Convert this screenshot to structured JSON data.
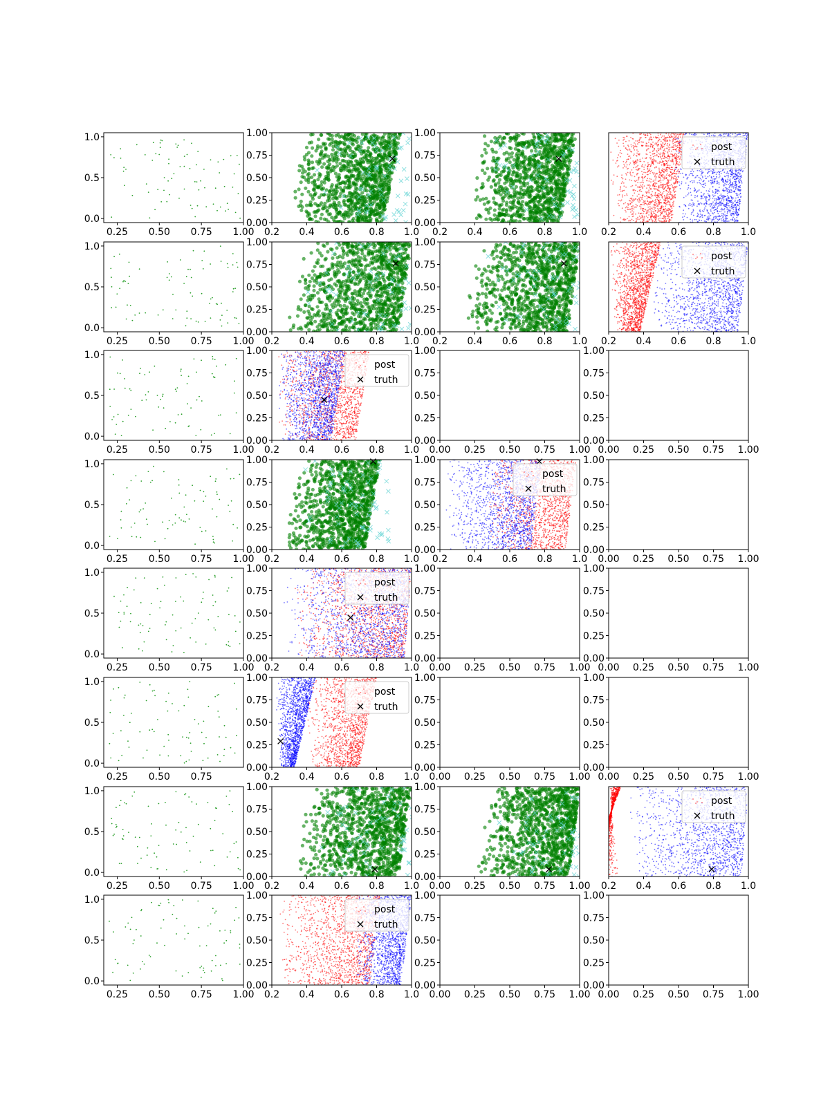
{
  "figure": {
    "rows": 8,
    "cols": 4
  },
  "legend": {
    "post_label": "post",
    "truth_label": "truth"
  },
  "colors": {
    "observed_points": "#2ca02c",
    "samples_green": "#008000",
    "samples_cyan": "#5fd3d3",
    "post_red": "#ff0000",
    "post_blue": "#0000ff",
    "truth_marker": "#000000"
  },
  "chart_data": [
    {
      "row": 0,
      "col": 0,
      "type": "scatter",
      "kind": "observed",
      "xlim": [
        0.17,
        1.0
      ],
      "ylim": [
        -0.05,
        1.05
      ],
      "xticks": [
        "0.25",
        "0.50",
        "0.75",
        "1.00"
      ],
      "yticks": [
        "0.0",
        "0.5",
        "1.0"
      ],
      "n_points": 80
    },
    {
      "row": 0,
      "col": 1,
      "type": "scatter",
      "kind": "green",
      "xlim": [
        0.2,
        1.0
      ],
      "ylim": [
        0,
        1.0
      ],
      "xticks": [
        "0.2",
        "0.4",
        "0.6",
        "0.8",
        "1.0"
      ],
      "yticks": [
        "0.00",
        "0.25",
        "0.50",
        "0.75",
        "1.00"
      ],
      "truth": [
        0.89,
        0.71
      ],
      "wedge": {
        "x0": 0.3,
        "x1": 0.94,
        "bias": 0.7
      }
    },
    {
      "row": 0,
      "col": 2,
      "type": "scatter",
      "kind": "green",
      "xlim": [
        0.2,
        1.0
      ],
      "ylim": [
        0,
        1.0
      ],
      "xticks": [
        "0.2",
        "0.4",
        "0.6",
        "0.8",
        "1.0"
      ],
      "yticks": [
        "0.00",
        "0.25",
        "0.50",
        "0.75",
        "1.00"
      ],
      "truth": [
        0.88,
        0.71
      ],
      "wedge": {
        "x0": 0.35,
        "x1": 0.98,
        "bias": 0.6
      }
    },
    {
      "row": 0,
      "col": 3,
      "type": "scatter",
      "kind": "post",
      "xlim": [
        0.2,
        1.0
      ],
      "ylim": [
        0,
        1.0
      ],
      "xticks": [
        "0.2",
        "0.4",
        "0.6",
        "0.8",
        "1.0"
      ],
      "yticks": [],
      "legend": true,
      "red": {
        "x0": 0.2,
        "x1": 0.64,
        "tilt": 0.08
      },
      "blue": {
        "x0": 0.56,
        "x1": 1.0,
        "tilt": 0.06
      }
    },
    {
      "row": 1,
      "col": 0,
      "type": "scatter",
      "kind": "observed",
      "xlim": [
        0.17,
        1.0
      ],
      "ylim": [
        -0.05,
        1.05
      ],
      "xticks": [
        "0.25",
        "0.50",
        "0.75",
        "1.00"
      ],
      "yticks": [
        "0.0",
        "0.5",
        "1.0"
      ],
      "n_points": 80
    },
    {
      "row": 1,
      "col": 1,
      "type": "scatter",
      "kind": "green",
      "xlim": [
        0.2,
        1.0
      ],
      "ylim": [
        0,
        1.0
      ],
      "xticks": [
        "0.2",
        "0.4",
        "0.6",
        "0.8",
        "1.0"
      ],
      "yticks": [
        "0.00",
        "0.25",
        "0.50",
        "0.75",
        "1.00"
      ],
      "truth": [
        0.91,
        0.76
      ],
      "wedge": {
        "x0": 0.25,
        "x1": 1.0,
        "bias": 0.5
      }
    },
    {
      "row": 1,
      "col": 2,
      "type": "scatter",
      "kind": "green",
      "xlim": [
        0.2,
        1.0
      ],
      "ylim": [
        0,
        1.0
      ],
      "xticks": [
        "0.2",
        "0.4",
        "0.6",
        "0.8",
        "1.0"
      ],
      "yticks": [
        "0.00",
        "0.25",
        "0.50",
        "0.75",
        "1.00"
      ],
      "truth": [
        0.91,
        0.76
      ],
      "wedge": {
        "x0": 0.3,
        "x1": 1.0,
        "bias": 0.45
      }
    },
    {
      "row": 1,
      "col": 3,
      "type": "scatter",
      "kind": "post",
      "xlim": [
        0.2,
        1.0
      ],
      "ylim": [
        0,
        1.0
      ],
      "xticks": [
        "0.2",
        "0.4",
        "0.6",
        "0.8",
        "1.0"
      ],
      "yticks": [],
      "legend": true,
      "red": {
        "x0": 0.2,
        "x1": 0.5,
        "tilt": 0.12
      },
      "blue": {
        "x0": 0.42,
        "x1": 1.0,
        "tilt": 0.06
      }
    },
    {
      "row": 2,
      "col": 0,
      "type": "scatter",
      "kind": "observed",
      "xlim": [
        0.17,
        1.0
      ],
      "ylim": [
        -0.05,
        1.05
      ],
      "xticks": [
        "0.25",
        "0.50",
        "0.75",
        "1.00"
      ],
      "yticks": [
        "0.0",
        "0.5",
        "1.0"
      ],
      "n_points": 80
    },
    {
      "row": 2,
      "col": 1,
      "type": "scatter",
      "kind": "post",
      "xlim": [
        0.2,
        1.0
      ],
      "ylim": [
        0,
        1.0
      ],
      "xticks": [
        "0.2",
        "0.4",
        "0.6",
        "0.8",
        "1.0"
      ],
      "yticks": [
        "0.00",
        "0.25",
        "0.50",
        "0.75",
        "1.00"
      ],
      "legend": true,
      "truth": [
        0.5,
        0.45
      ],
      "red": {
        "x0": 0.22,
        "x1": 0.76,
        "tilt": 0.08
      },
      "blue": {
        "x0": 0.22,
        "x1": 0.62,
        "tilt": 0.08
      }
    },
    {
      "row": 2,
      "col": 2,
      "type": "empty",
      "xlim": [
        0,
        1.0
      ],
      "ylim": [
        0,
        1.0
      ],
      "xticks": [
        "0.00",
        "0.25",
        "0.50",
        "0.75",
        "1.00"
      ],
      "yticks": [
        "0.00",
        "0.25",
        "0.50",
        "0.75",
        "1.00"
      ]
    },
    {
      "row": 2,
      "col": 3,
      "type": "empty",
      "xlim": [
        0,
        1.0
      ],
      "ylim": [
        0,
        1.0
      ],
      "xticks": [
        "0.00",
        "0.25",
        "0.50",
        "0.75",
        "1.00"
      ],
      "yticks": [
        "0.00",
        "0.25",
        "0.50",
        "0.75",
        "1.00"
      ]
    },
    {
      "row": 3,
      "col": 0,
      "type": "scatter",
      "kind": "observed",
      "xlim": [
        0.17,
        1.0
      ],
      "ylim": [
        -0.05,
        1.05
      ],
      "xticks": [
        "0.25",
        "0.50",
        "0.75",
        "1.00"
      ],
      "yticks": [
        "0.0",
        "0.5",
        "1.0"
      ],
      "n_points": 80
    },
    {
      "row": 3,
      "col": 1,
      "type": "scatter",
      "kind": "green",
      "xlim": [
        0.2,
        1.0
      ],
      "ylim": [
        0,
        1.0
      ],
      "xticks": [
        "0.2",
        "0.4",
        "0.6",
        "0.8",
        "1.0"
      ],
      "yticks": [
        "0.00",
        "0.25",
        "0.50",
        "0.75",
        "1.00"
      ],
      "truth": [
        0.78,
        0.98
      ],
      "wedge": {
        "x0": 0.25,
        "x1": 0.82,
        "bias": 0.6
      }
    },
    {
      "row": 3,
      "col": 2,
      "type": "scatter",
      "kind": "post",
      "xlim": [
        0.2,
        1.0
      ],
      "ylim": [
        0,
        1.0
      ],
      "xticks": [
        "0.2",
        "0.4",
        "0.6",
        "0.8",
        "1.0"
      ],
      "yticks": [
        "0.00",
        "0.25",
        "0.50",
        "0.75",
        "1.00"
      ],
      "legend": true,
      "truth": [
        0.77,
        0.98
      ],
      "red": {
        "x0": 0.45,
        "x1": 0.98,
        "tilt": 0.06
      },
      "blue": {
        "x0": 0.22,
        "x1": 0.78,
        "tilt": 0.06
      }
    },
    {
      "row": 3,
      "col": 3,
      "type": "empty",
      "xlim": [
        0,
        1.0
      ],
      "ylim": [
        0,
        1.0
      ],
      "xticks": [
        "0.00",
        "0.25",
        "0.50",
        "0.75",
        "1.00"
      ],
      "yticks": [
        "0.00",
        "0.25",
        "0.50",
        "0.75",
        "1.00"
      ]
    },
    {
      "row": 4,
      "col": 0,
      "type": "scatter",
      "kind": "observed",
      "xlim": [
        0.17,
        1.0
      ],
      "ylim": [
        -0.05,
        1.05
      ],
      "xticks": [
        "0.25",
        "0.50",
        "0.75",
        "1.00"
      ],
      "yticks": [
        "0.0",
        "0.5",
        "1.0"
      ],
      "n_points": 80
    },
    {
      "row": 4,
      "col": 1,
      "type": "scatter",
      "kind": "post",
      "xlim": [
        0.2,
        1.0
      ],
      "ylim": [
        0,
        1.0
      ],
      "xticks": [
        "0.2",
        "0.4",
        "0.6",
        "0.8",
        "1.0"
      ],
      "yticks": [
        "0.00",
        "0.25",
        "0.50",
        "0.75",
        "1.00"
      ],
      "legend": true,
      "truth": [
        0.65,
        0.45
      ],
      "red": {
        "x0": 0.3,
        "x1": 1.0,
        "tilt": 0.04
      },
      "blue": {
        "x0": 0.25,
        "x1": 1.0,
        "tilt": 0.04
      }
    },
    {
      "row": 4,
      "col": 2,
      "type": "empty",
      "xlim": [
        0,
        1.0
      ],
      "ylim": [
        0,
        1.0
      ],
      "xticks": [
        "0.00",
        "0.25",
        "0.50",
        "0.75",
        "1.00"
      ],
      "yticks": [
        "0.00",
        "0.25",
        "0.50",
        "0.75",
        "1.00"
      ]
    },
    {
      "row": 4,
      "col": 3,
      "type": "empty",
      "xlim": [
        0,
        1.0
      ],
      "ylim": [
        0,
        1.0
      ],
      "xticks": [
        "0.00",
        "0.25",
        "0.50",
        "0.75",
        "1.00"
      ],
      "yticks": [
        "0.00",
        "0.25",
        "0.50",
        "0.75",
        "1.00"
      ]
    },
    {
      "row": 5,
      "col": 0,
      "type": "scatter",
      "kind": "observed",
      "xlim": [
        0.17,
        1.0
      ],
      "ylim": [
        -0.05,
        1.05
      ],
      "xticks": [
        "0.25",
        "0.50",
        "0.75"
      ],
      "yticks": [
        "0.0",
        "0.5",
        "1.0"
      ],
      "n_points": 80
    },
    {
      "row": 5,
      "col": 1,
      "type": "scatter",
      "kind": "post",
      "xlim": [
        0.2,
        1.0
      ],
      "ylim": [
        0,
        1.0
      ],
      "xticks": [
        "0.2",
        "0.4",
        "0.6",
        "0.8",
        "1.0"
      ],
      "yticks": [
        "0.00",
        "0.25",
        "0.50",
        "0.75",
        "1.00"
      ],
      "legend": true,
      "truth": [
        0.25,
        0.29
      ],
      "red": {
        "x0": 0.38,
        "x1": 0.8,
        "tilt": 0.1
      },
      "blue": {
        "x0": 0.21,
        "x1": 0.45,
        "tilt": 0.12
      }
    },
    {
      "row": 5,
      "col": 2,
      "type": "empty",
      "xlim": [
        0,
        1.0
      ],
      "ylim": [
        0,
        1.0
      ],
      "xticks": [
        "0.00",
        "0.25",
        "0.50",
        "0.75",
        "1.00"
      ],
      "yticks": [
        "0.00",
        "0.25",
        "0.50",
        "0.75",
        "1.00"
      ]
    },
    {
      "row": 5,
      "col": 3,
      "type": "empty",
      "xlim": [
        0,
        1.0
      ],
      "ylim": [
        0,
        1.0
      ],
      "xticks": [
        "0.00",
        "0.25",
        "0.50",
        "0.75",
        "1.00"
      ],
      "yticks": [
        "0.00",
        "0.25",
        "0.50",
        "0.75",
        "1.00"
      ]
    },
    {
      "row": 6,
      "col": 0,
      "type": "scatter",
      "kind": "observed",
      "xlim": [
        0.17,
        1.0
      ],
      "ylim": [
        -0.05,
        1.05
      ],
      "xticks": [
        "0.25",
        "0.50",
        "0.75",
        "1.00"
      ],
      "yticks": [
        "0.0",
        "0.5",
        "1.0"
      ],
      "n_points": 80
    },
    {
      "row": 6,
      "col": 1,
      "type": "scatter",
      "kind": "green",
      "xlim": [
        0.2,
        1.0
      ],
      "ylim": [
        0,
        1.0
      ],
      "xticks": [
        "0.2",
        "0.4",
        "0.6",
        "0.8",
        "1.0"
      ],
      "yticks": [
        "0.00",
        "0.25",
        "0.50",
        "0.75",
        "1.00"
      ],
      "truth": [
        0.79,
        0.08
      ],
      "wedge": {
        "x0": 0.3,
        "x1": 1.0,
        "bias": 0.5
      }
    },
    {
      "row": 6,
      "col": 2,
      "type": "scatter",
      "kind": "green",
      "xlim": [
        0.0,
        1.0
      ],
      "ylim": [
        0,
        1.0
      ],
      "xticks": [
        "0.00",
        "0.25",
        "0.50",
        "0.75",
        "1.00"
      ],
      "yticks": [
        "0.00",
        "0.25",
        "0.50",
        "0.75",
        "1.00"
      ],
      "truth": [
        0.78,
        0.08
      ],
      "wedge": {
        "x0": 0.25,
        "x1": 1.0,
        "bias": 0.5
      }
    },
    {
      "row": 6,
      "col": 3,
      "type": "scatter",
      "kind": "post",
      "xlim": [
        0.2,
        1.0
      ],
      "ylim": [
        0,
        1.0
      ],
      "xticks": [
        "0.2",
        "0.4",
        "0.6",
        "0.8",
        "1.0"
      ],
      "yticks": [],
      "legend": true,
      "truth": [
        0.79,
        0.08
      ],
      "red": {
        "x0": 0.2,
        "x1": 0.27,
        "tilt": 0.2
      },
      "blue": {
        "x0": 0.3,
        "x1": 1.0,
        "tilt": 0.04
      }
    },
    {
      "row": 7,
      "col": 0,
      "type": "scatter",
      "kind": "observed",
      "xlim": [
        0.17,
        1.0
      ],
      "ylim": [
        -0.05,
        1.05
      ],
      "xticks": [
        "0.25",
        "0.50",
        "0.75",
        "1.00"
      ],
      "yticks": [
        "0.0",
        "0.5",
        "1.0"
      ],
      "n_points": 80
    },
    {
      "row": 7,
      "col": 1,
      "type": "scatter",
      "kind": "post",
      "xlim": [
        0.2,
        1.0
      ],
      "ylim": [
        0,
        1.0
      ],
      "xticks": [
        "0.2",
        "0.4",
        "0.6",
        "0.8",
        "1.0"
      ],
      "yticks": [
        "0.00",
        "0.25",
        "0.50",
        "0.75",
        "1.00"
      ],
      "legend": true,
      "red": {
        "x0": 0.22,
        "x1": 0.82,
        "tilt": 0.06
      },
      "blue": {
        "x0": 0.66,
        "x1": 1.0,
        "tilt": 0.06
      }
    },
    {
      "row": 7,
      "col": 2,
      "type": "empty",
      "xlim": [
        0,
        1.0
      ],
      "ylim": [
        0,
        1.0
      ],
      "xticks": [
        "0.00",
        "0.25",
        "0.50",
        "0.75",
        "1.00"
      ],
      "yticks": [
        "0.00",
        "0.25",
        "0.50",
        "0.75",
        "1.00"
      ]
    },
    {
      "row": 7,
      "col": 3,
      "type": "empty",
      "xlim": [
        0,
        1.0
      ],
      "ylim": [
        0,
        1.0
      ],
      "xticks": [
        "0.00",
        "0.25",
        "0.50",
        "0.75",
        "1.00"
      ],
      "yticks": [
        "0.00",
        "0.25",
        "0.50",
        "0.75",
        "1.00"
      ]
    }
  ]
}
